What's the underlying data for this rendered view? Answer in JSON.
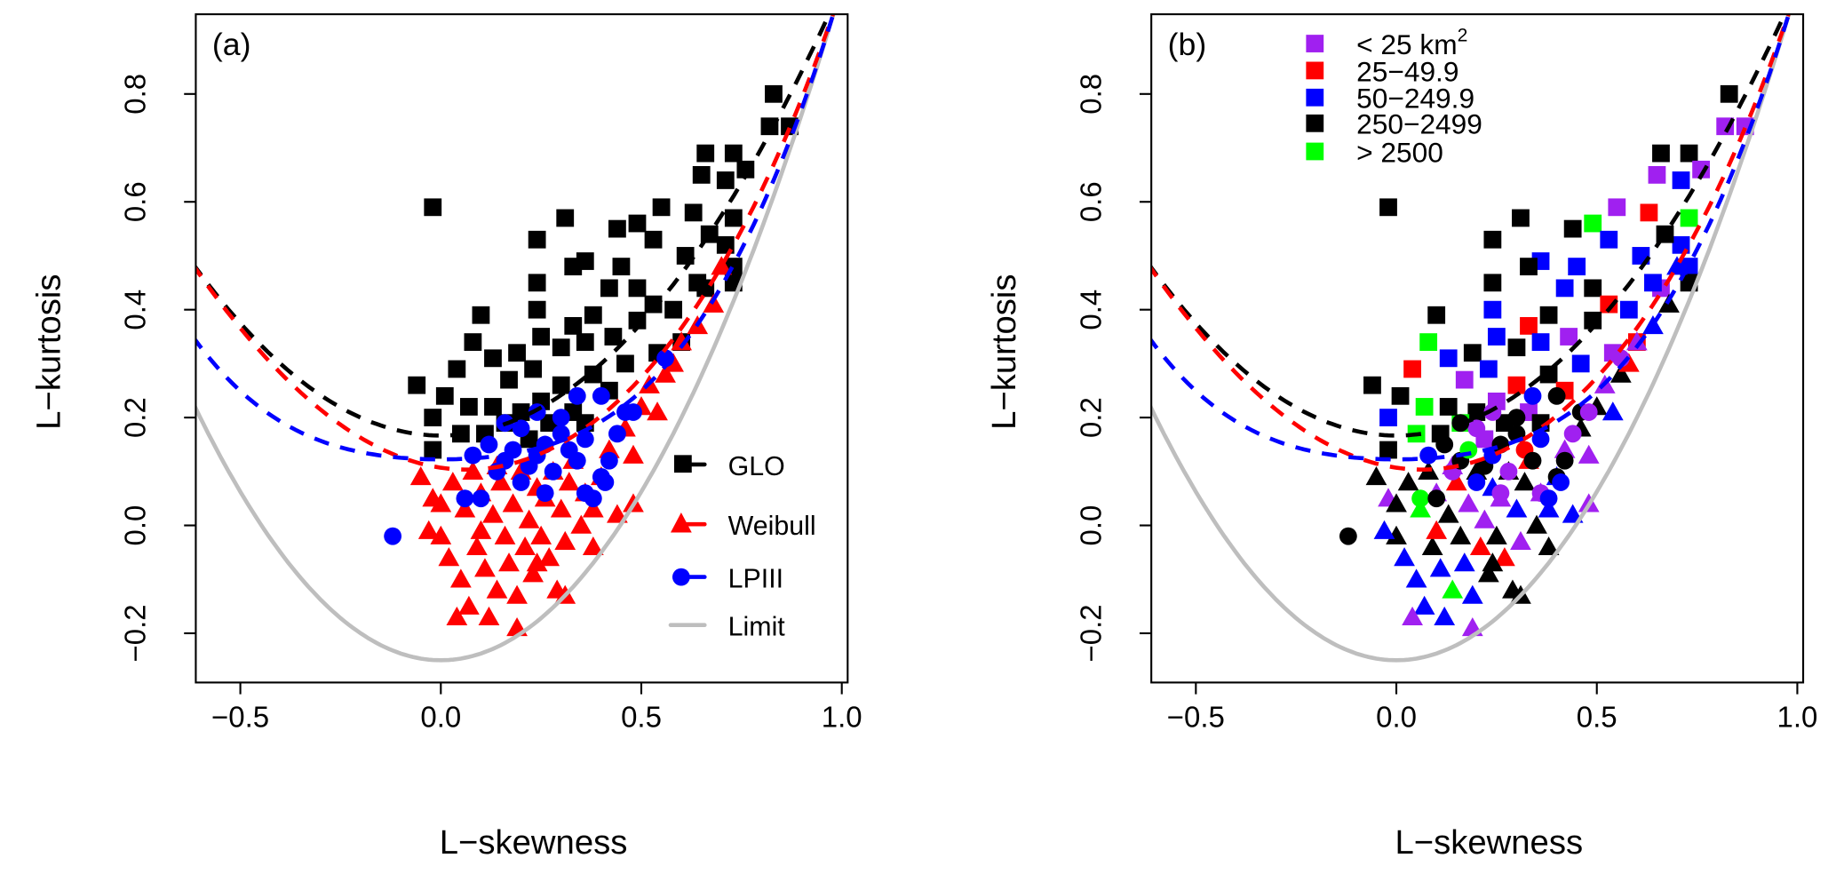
{
  "chart_data": {
    "type": "scatter",
    "xlabel": "L−skewness",
    "ylabel": "L−kurtosis",
    "xlim": [
      -0.61,
      1.02
    ],
    "ylim": [
      -0.29,
      0.95
    ],
    "x_ticks": [
      -0.5,
      0.0,
      0.5,
      1.0
    ],
    "x_tick_labels": [
      "−0.5",
      "0.0",
      "0.5",
      "1.0"
    ],
    "y_ticks": [
      -0.2,
      0.0,
      0.2,
      0.4,
      0.6,
      0.8
    ],
    "y_tick_labels": [
      "−0.2",
      "0.0",
      "0.2",
      "0.4",
      "0.6",
      "0.8"
    ],
    "grid": false,
    "panels": [
      {
        "label": "(a)",
        "color_by": "distribution",
        "legend_placement": "bottom-right"
      },
      {
        "label": "(b)",
        "color_by": "drainage_area_class",
        "legend_placement": "top"
      }
    ],
    "distributions": [
      {
        "name": "GLO",
        "marker": "square",
        "color": "#000000"
      },
      {
        "name": "Weibull",
        "marker": "triangle",
        "color": "#ff0000"
      },
      {
        "name": "LPIII",
        "marker": "circle",
        "color": "#0000ff"
      }
    ],
    "limit": {
      "name": "Limit",
      "color": "#bebebe",
      "formula": "(5*t3^2-1)/4"
    },
    "curves": [
      {
        "name": "GLO",
        "color": "#000000",
        "coef": [
          0.166667,
          0,
          0.833333
        ]
      },
      {
        "name": "Weibull",
        "color": "#ff0000",
        "coef": [
          0.10701,
          -0.1109,
          0.84838,
          0.06669,
          0.00567,
          0.04208,
          0.03763
        ]
      },
      {
        "name": "LPIII",
        "color": "#0000ff",
        "coef": [
          0.1224,
          0,
          0.30115,
          0,
          0.95812,
          0,
          -0.57488,
          0,
          0.19383
        ]
      }
    ],
    "area_classes": [
      {
        "label": "< 25 km",
        "sup": "2",
        "color": "#a020f0"
      },
      {
        "label": "25−49.9",
        "sup": "",
        "color": "#ff0000"
      },
      {
        "label": "50−249.9",
        "sup": "",
        "color": "#0000ff"
      },
      {
        "label": "250−2499",
        "sup": "",
        "color": "#000000"
      },
      {
        "label": "> 2500",
        "sup": "",
        "color": "#00ff00"
      }
    ],
    "points": {
      "GLO": [
        [
          -0.02,
          0.59,
          3
        ],
        [
          0.24,
          0.53,
          3
        ],
        [
          0.31,
          0.57,
          3
        ],
        [
          0.24,
          0.45,
          3
        ],
        [
          0.24,
          0.4,
          2
        ],
        [
          0.1,
          0.39,
          3
        ],
        [
          0.36,
          0.49,
          2
        ],
        [
          0.33,
          0.48,
          3
        ],
        [
          0.49,
          0.56,
          4
        ],
        [
          0.55,
          0.59,
          0
        ],
        [
          0.66,
          0.69,
          3
        ],
        [
          0.73,
          0.69,
          3
        ],
        [
          0.83,
          0.8,
          3
        ],
        [
          0.87,
          0.74,
          0
        ],
        [
          0.82,
          0.74,
          0
        ],
        [
          0.76,
          0.66,
          0
        ],
        [
          0.71,
          0.64,
          2
        ],
        [
          0.65,
          0.65,
          0
        ],
        [
          0.63,
          0.58,
          1
        ],
        [
          0.73,
          0.57,
          4
        ],
        [
          0.71,
          0.52,
          2
        ],
        [
          0.67,
          0.54,
          3
        ],
        [
          0.61,
          0.5,
          2
        ],
        [
          0.53,
          0.53,
          2
        ],
        [
          0.44,
          0.55,
          3
        ],
        [
          0.45,
          0.48,
          2
        ],
        [
          0.49,
          0.44,
          3
        ],
        [
          0.42,
          0.44,
          2
        ],
        [
          0.38,
          0.39,
          3
        ],
        [
          0.53,
          0.41,
          1
        ],
        [
          0.58,
          0.4,
          2
        ],
        [
          0.66,
          0.44,
          0
        ],
        [
          0.73,
          0.48,
          2
        ],
        [
          0.73,
          0.45,
          3
        ],
        [
          0.33,
          0.37,
          1
        ],
        [
          0.25,
          0.35,
          2
        ],
        [
          0.19,
          0.32,
          3
        ],
        [
          0.13,
          0.31,
          2
        ],
        [
          0.04,
          0.29,
          1
        ],
        [
          -0.06,
          0.26,
          3
        ],
        [
          0.01,
          0.24,
          3
        ],
        [
          0.07,
          0.22,
          4
        ],
        [
          0.17,
          0.27,
          0
        ],
        [
          0.23,
          0.29,
          2
        ],
        [
          0.3,
          0.33,
          3
        ],
        [
          0.36,
          0.34,
          2
        ],
        [
          0.43,
          0.35,
          0
        ],
        [
          0.49,
          0.38,
          3
        ],
        [
          0.3,
          0.26,
          1
        ],
        [
          0.25,
          0.23,
          0
        ],
        [
          0.2,
          0.21,
          3
        ],
        [
          0.16,
          0.19,
          4
        ],
        [
          0.11,
          0.17,
          3
        ],
        [
          0.05,
          0.17,
          4
        ],
        [
          -0.02,
          0.14,
          3
        ],
        [
          -0.02,
          0.2,
          2
        ],
        [
          0.38,
          0.28,
          3
        ],
        [
          0.42,
          0.25,
          1
        ],
        [
          0.33,
          0.21,
          0
        ],
        [
          0.27,
          0.19,
          3
        ],
        [
          0.22,
          0.16,
          0
        ],
        [
          0.36,
          0.19,
          3
        ],
        [
          0.46,
          0.3,
          2
        ],
        [
          0.54,
          0.32,
          0
        ],
        [
          0.6,
          0.34,
          1
        ],
        [
          0.08,
          0.34,
          4
        ],
        [
          0.13,
          0.22,
          3
        ],
        [
          0.64,
          0.45,
          2
        ]
      ],
      "Weibull": [
        [
          -0.05,
          0.09,
          3
        ],
        [
          -0.02,
          0.05,
          0
        ],
        [
          0.0,
          -0.02,
          3
        ],
        [
          0.02,
          -0.06,
          2
        ],
        [
          0.03,
          0.08,
          3
        ],
        [
          0.05,
          -0.1,
          2
        ],
        [
          0.06,
          0.03,
          4
        ],
        [
          0.07,
          -0.15,
          2
        ],
        [
          0.08,
          0.1,
          3
        ],
        [
          0.09,
          -0.04,
          3
        ],
        [
          0.1,
          0.06,
          0
        ],
        [
          0.11,
          -0.08,
          2
        ],
        [
          0.12,
          -0.17,
          2
        ],
        [
          0.13,
          0.02,
          3
        ],
        [
          0.14,
          -0.12,
          4
        ],
        [
          0.15,
          0.08,
          1
        ],
        [
          0.16,
          -0.02,
          3
        ],
        [
          0.17,
          -0.07,
          2
        ],
        [
          0.18,
          0.04,
          0
        ],
        [
          0.19,
          -0.13,
          2
        ],
        [
          0.2,
          0.1,
          3
        ],
        [
          0.21,
          -0.04,
          1
        ],
        [
          0.22,
          0.01,
          0
        ],
        [
          0.23,
          -0.09,
          3
        ],
        [
          0.24,
          0.07,
          2
        ],
        [
          0.25,
          -0.02,
          3
        ],
        [
          0.26,
          0.05,
          0
        ],
        [
          0.27,
          -0.06,
          1
        ],
        [
          0.28,
          0.1,
          3
        ],
        [
          0.29,
          -0.12,
          3
        ],
        [
          0.3,
          0.03,
          2
        ],
        [
          0.31,
          -0.03,
          0
        ],
        [
          0.32,
          0.08,
          3
        ],
        [
          0.33,
          0.12,
          1
        ],
        [
          0.35,
          0.0,
          3
        ],
        [
          0.36,
          0.06,
          0
        ],
        [
          0.38,
          -0.04,
          3
        ],
        [
          0.4,
          0.09,
          2
        ],
        [
          0.42,
          0.14,
          0
        ],
        [
          0.44,
          0.02,
          2
        ],
        [
          0.46,
          0.18,
          3
        ],
        [
          0.48,
          0.13,
          0
        ],
        [
          0.5,
          0.22,
          3
        ],
        [
          0.52,
          0.26,
          0
        ],
        [
          0.54,
          0.21,
          2
        ],
        [
          0.56,
          0.28,
          3
        ],
        [
          0.58,
          0.3,
          1
        ],
        [
          0.6,
          0.34,
          0
        ],
        [
          0.64,
          0.37,
          2
        ],
        [
          0.68,
          0.41,
          3
        ],
        [
          0.7,
          0.48,
          2
        ],
        [
          0.04,
          -0.17,
          0
        ],
        [
          0.19,
          -0.19,
          0
        ],
        [
          0.31,
          -0.13,
          3
        ],
        [
          0.1,
          -0.01,
          1
        ],
        [
          0.24,
          -0.07,
          3
        ],
        [
          0.14,
          0.11,
          0
        ],
        [
          0.38,
          0.03,
          2
        ],
        [
          0.48,
          0.04,
          0
        ],
        [
          0.0,
          0.04,
          3
        ],
        [
          -0.03,
          -0.01,
          2
        ]
      ],
      "LPIII": [
        [
          -0.12,
          -0.02,
          3
        ],
        [
          0.06,
          0.05,
          4
        ],
        [
          0.08,
          0.13,
          2
        ],
        [
          0.12,
          0.15,
          3
        ],
        [
          0.14,
          0.1,
          0
        ],
        [
          0.16,
          0.12,
          3
        ],
        [
          0.18,
          0.14,
          4
        ],
        [
          0.2,
          0.18,
          0
        ],
        [
          0.22,
          0.11,
          3
        ],
        [
          0.24,
          0.13,
          2
        ],
        [
          0.26,
          0.15,
          3
        ],
        [
          0.28,
          0.1,
          0
        ],
        [
          0.3,
          0.17,
          3
        ],
        [
          0.32,
          0.14,
          1
        ],
        [
          0.34,
          0.12,
          3
        ],
        [
          0.36,
          0.06,
          0
        ],
        [
          0.38,
          0.05,
          2
        ],
        [
          0.4,
          0.09,
          3
        ],
        [
          0.41,
          0.08,
          2
        ],
        [
          0.42,
          0.12,
          3
        ],
        [
          0.44,
          0.17,
          0
        ],
        [
          0.46,
          0.21,
          3
        ],
        [
          0.48,
          0.21,
          0
        ],
        [
          0.36,
          0.16,
          2
        ],
        [
          0.3,
          0.2,
          3
        ],
        [
          0.24,
          0.21,
          0
        ],
        [
          0.16,
          0.19,
          3
        ],
        [
          0.2,
          0.08,
          2
        ],
        [
          0.1,
          0.05,
          3
        ],
        [
          0.26,
          0.06,
          0
        ],
        [
          0.56,
          0.31,
          0
        ],
        [
          0.4,
          0.24,
          3
        ],
        [
          0.34,
          0.24,
          2
        ]
      ]
    }
  }
}
